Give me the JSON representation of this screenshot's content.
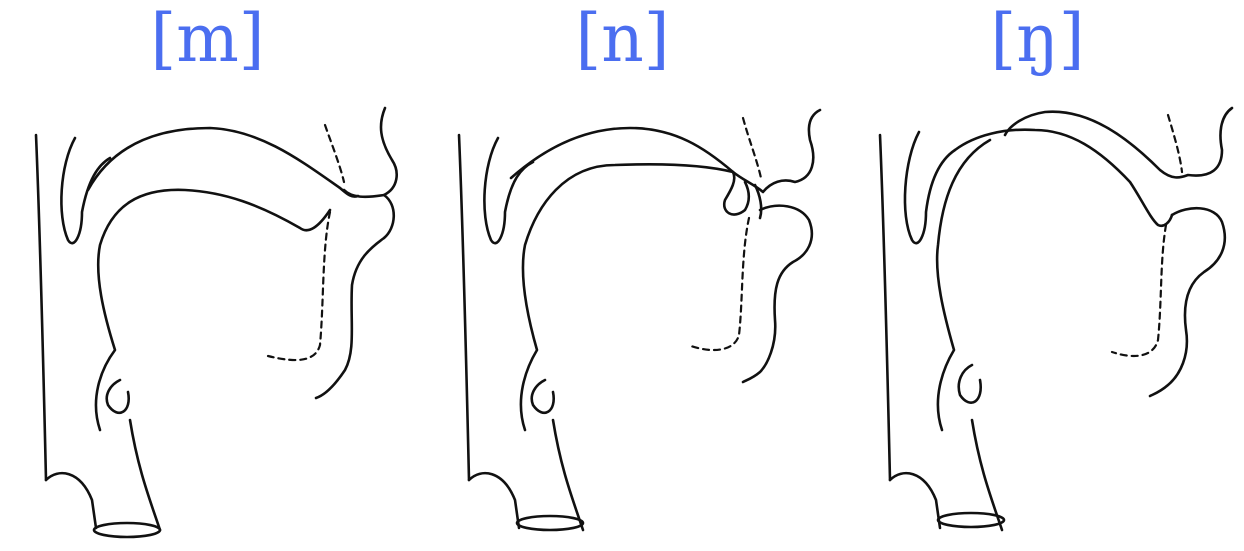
{
  "colors": {
    "label": "#4b6ef0",
    "line": "#111111",
    "background": "#ffffff"
  },
  "panels": [
    {
      "label": "[m]"
    },
    {
      "label": "[n]"
    },
    {
      "label": "[ŋ]"
    }
  ]
}
